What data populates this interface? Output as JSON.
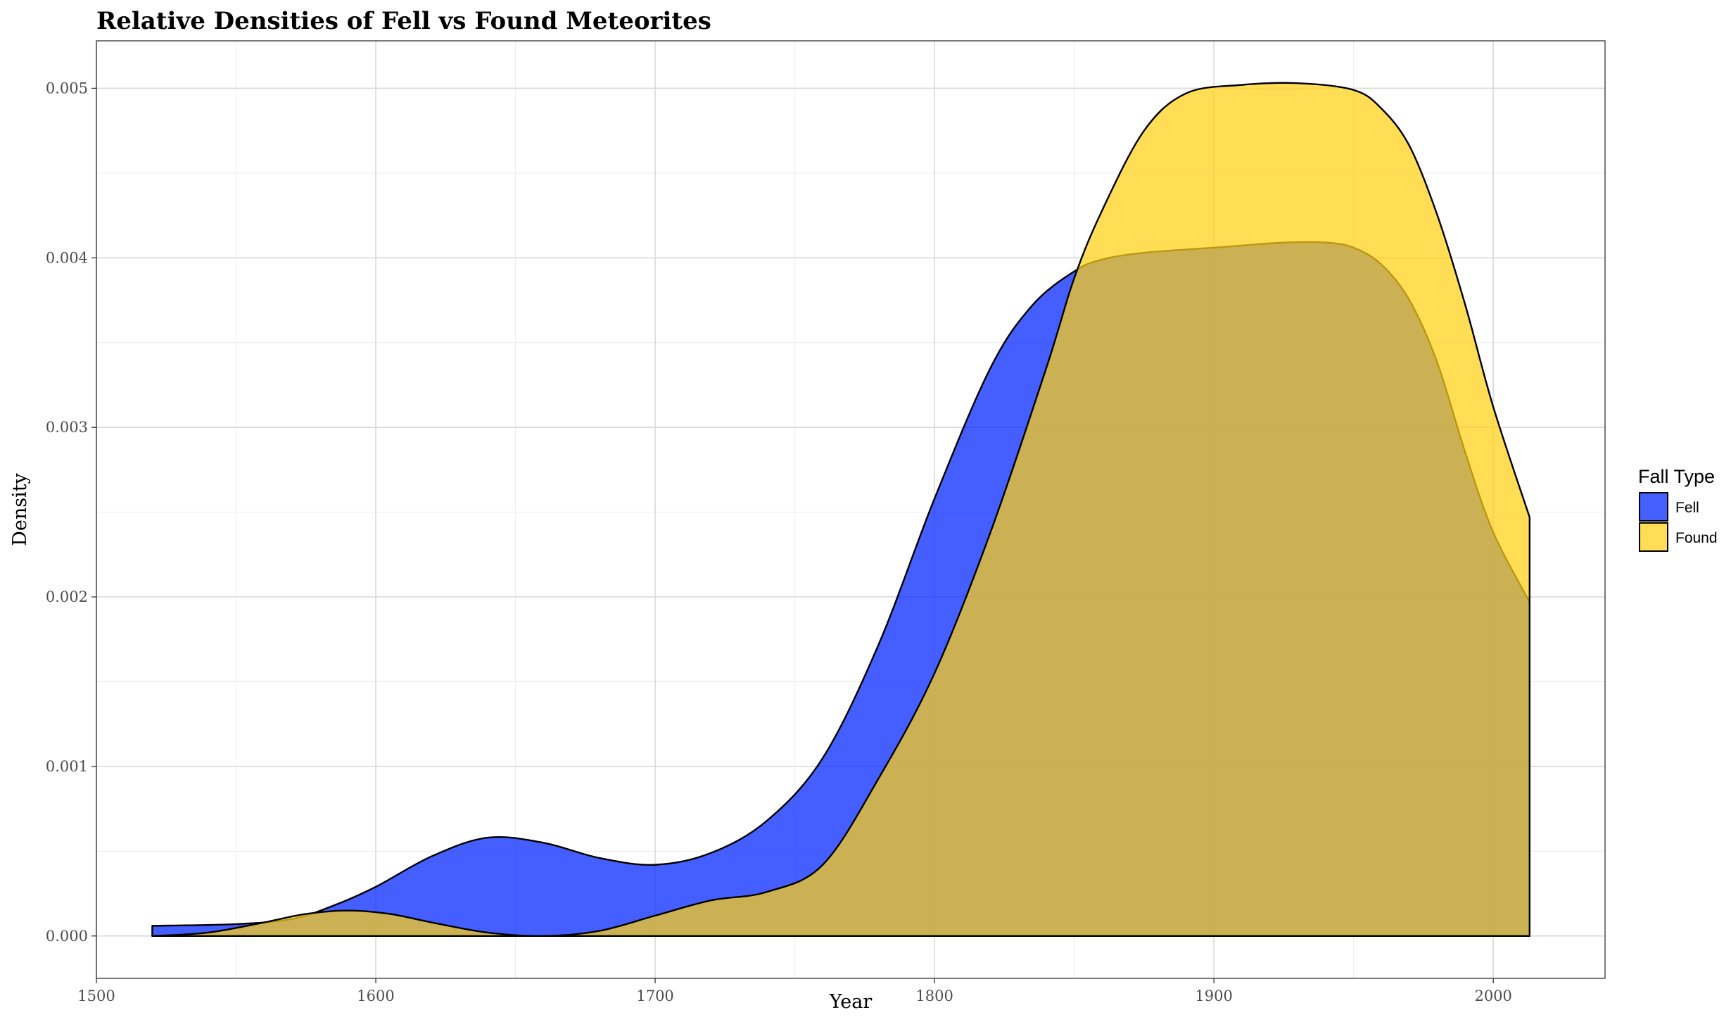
{
  "chart_data": {
    "type": "area",
    "subtype": "density",
    "title": "Relative Densities of Fell vs Found Meteorites",
    "xlabel": "Year",
    "ylabel": "Density",
    "xlim": [
      1500,
      2040
    ],
    "ylim": [
      -0.00025,
      0.00528
    ],
    "x_ticks": [
      1500,
      1600,
      1700,
      1800,
      1900,
      2000
    ],
    "x_tick_labels": [
      "1500",
      "1600",
      "1700",
      "1800",
      "1900",
      "2000"
    ],
    "y_ticks": [
      0,
      0.001,
      0.002,
      0.003,
      0.004,
      0.005
    ],
    "y_tick_labels": [
      "0.000",
      "0.001",
      "0.002",
      "0.003",
      "0.004",
      "0.005"
    ],
    "grid": true,
    "legend": {
      "title": "Fall Type",
      "position": "right"
    },
    "series": [
      {
        "name": "Fell",
        "color": "#0022ff",
        "fill_opacity": 0.73,
        "x": [
          1520,
          1550,
          1570,
          1585,
          1600,
          1620,
          1640,
          1660,
          1680,
          1700,
          1720,
          1740,
          1760,
          1780,
          1800,
          1820,
          1835,
          1850,
          1860,
          1875,
          1900,
          1925,
          1940,
          1950,
          1960,
          1970,
          1980,
          1990,
          2000,
          2013
        ],
        "y": [
          6e-05,
          7e-05,
          0.0001,
          0.00018,
          0.00029,
          0.00047,
          0.00058,
          0.00055,
          0.00046,
          0.00042,
          0.00049,
          0.00068,
          0.00105,
          0.00172,
          0.00258,
          0.00335,
          0.00372,
          0.00392,
          0.00399,
          0.00403,
          0.00406,
          0.00409,
          0.00409,
          0.00406,
          0.00396,
          0.00375,
          0.00338,
          0.00285,
          0.00238,
          0.00197
        ]
      },
      {
        "name": "Found",
        "color": "#ffd015",
        "fill_opacity": 0.73,
        "x": [
          1520,
          1540,
          1560,
          1575,
          1590,
          1605,
          1620,
          1640,
          1660,
          1680,
          1700,
          1720,
          1740,
          1760,
          1780,
          1800,
          1820,
          1840,
          1850,
          1860,
          1875,
          1890,
          1910,
          1930,
          1950,
          1960,
          1970,
          1980,
          1990,
          2000,
          2013
        ],
        "y": [
          0,
          2e-05,
          8e-05,
          0.00013,
          0.00015,
          0.00013,
          8e-05,
          2e-05,
          0,
          3e-05,
          0.00012,
          0.00021,
          0.00026,
          0.00042,
          0.00093,
          0.00155,
          0.00238,
          0.00335,
          0.00388,
          0.00428,
          0.00475,
          0.00497,
          0.00502,
          0.00503,
          0.00499,
          0.00488,
          0.00466,
          0.00425,
          0.00372,
          0.00312,
          0.00247
        ]
      }
    ]
  }
}
